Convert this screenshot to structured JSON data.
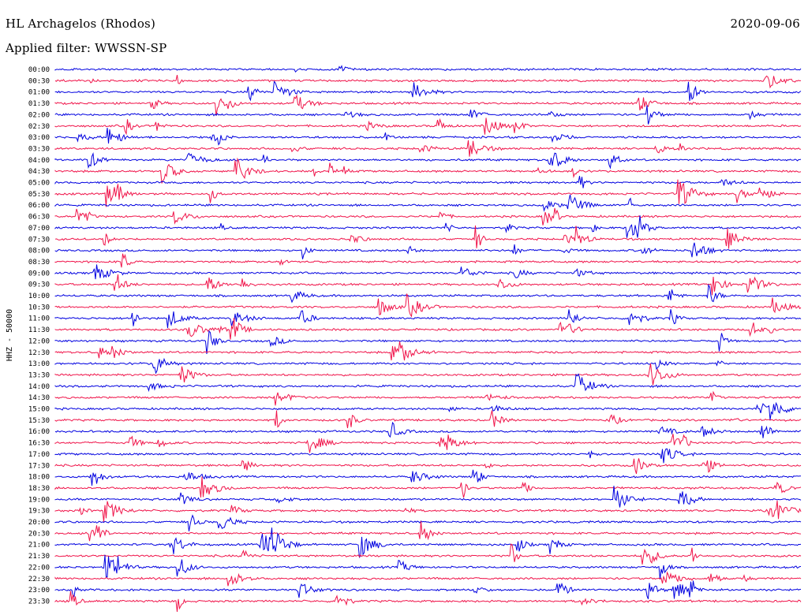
{
  "header": {
    "station": "HL Archagelos (Rhodos)",
    "date": "2020-09-06",
    "filter": "Applied filter: WWSSN-SP"
  },
  "chart_data": {
    "type": "line",
    "title": "HL Archagelos (Rhodos)",
    "ylabel": "HHZ - 50000",
    "xlabel": "",
    "row_labels": [
      "00:00",
      "00:30",
      "01:00",
      "01:30",
      "02:00",
      "02:30",
      "03:00",
      "03:30",
      "04:00",
      "04:30",
      "05:00",
      "05:30",
      "06:00",
      "06:30",
      "07:00",
      "07:30",
      "08:00",
      "08:30",
      "09:00",
      "09:30",
      "10:00",
      "10:30",
      "11:00",
      "11:30",
      "12:00",
      "12:30",
      "13:00",
      "13:30",
      "14:00",
      "14:30",
      "15:00",
      "15:30",
      "16:00",
      "16:30",
      "17:00",
      "17:30",
      "18:00",
      "18:30",
      "19:00",
      "19:30",
      "20:00",
      "20:30",
      "21:00",
      "21:30",
      "22:00",
      "22:30",
      "23:00",
      "23:30"
    ],
    "trace_colors": [
      "#0000e0",
      "#f0144a"
    ],
    "grid": false,
    "legend": "none"
  }
}
